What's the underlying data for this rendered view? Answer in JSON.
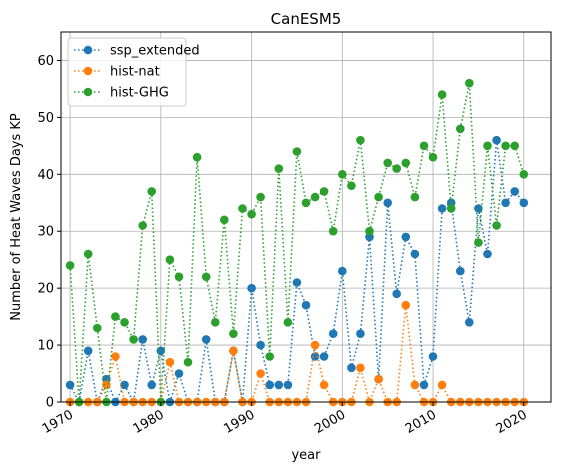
{
  "chart_data": {
    "type": "line",
    "title": "CanESM5",
    "xlabel": "year",
    "ylabel": "Number of Heat Waves Days KP",
    "xlim": [
      1969,
      2023
    ],
    "ylim": [
      0,
      65
    ],
    "xticks": [
      1970,
      1980,
      1990,
      2000,
      2010,
      2020
    ],
    "yticks": [
      0,
      10,
      20,
      30,
      40,
      50,
      60
    ],
    "grid": true,
    "legend_position": "top-left",
    "x": [
      1970,
      1971,
      1972,
      1973,
      1974,
      1975,
      1976,
      1977,
      1978,
      1979,
      1980,
      1981,
      1982,
      1983,
      1984,
      1985,
      1986,
      1987,
      1988,
      1989,
      1990,
      1991,
      1992,
      1993,
      1994,
      1995,
      1996,
      1997,
      1998,
      1999,
      2000,
      2001,
      2002,
      2003,
      2004,
      2005,
      2006,
      2007,
      2008,
      2009,
      2010,
      2011,
      2012,
      2013,
      2014,
      2015,
      2016,
      2017,
      2018,
      2019,
      2020,
      2021
    ],
    "series": [
      {
        "name": "ssp_extended",
        "color": "#1f77b4",
        "values": [
          3,
          0,
          9,
          0,
          4,
          0,
          3,
          0,
          11,
          3,
          9,
          0,
          5,
          0,
          0,
          11,
          0,
          0,
          9,
          0,
          20,
          10,
          3,
          3,
          3,
          21,
          17,
          8,
          8,
          12,
          23,
          6,
          12,
          29,
          4,
          35,
          19,
          29,
          26,
          3,
          8,
          34,
          35,
          23,
          14,
          34,
          26,
          46,
          35,
          37,
          35,
          null
        ]
      },
      {
        "name": "hist-nat",
        "color": "#ff7f0e",
        "values": [
          0,
          0,
          0,
          0,
          3,
          8,
          0,
          0,
          0,
          0,
          0,
          7,
          0,
          0,
          0,
          0,
          0,
          0,
          9,
          0,
          0,
          5,
          0,
          0,
          0,
          0,
          0,
          10,
          3,
          0,
          0,
          0,
          6,
          0,
          4,
          0,
          0,
          17,
          3,
          0,
          0,
          3,
          0,
          0,
          0,
          0,
          0,
          0,
          0,
          0,
          0,
          null
        ]
      },
      {
        "name": "hist-GHG",
        "color": "#2ca02c",
        "values": [
          24,
          0,
          26,
          13,
          0,
          15,
          14,
          11,
          31,
          37,
          0,
          25,
          22,
          7,
          43,
          22,
          14,
          32,
          12,
          34,
          33,
          36,
          8,
          41,
          14,
          44,
          35,
          36,
          37,
          30,
          40,
          38,
          46,
          30,
          36,
          42,
          41,
          42,
          36,
          45,
          43,
          54,
          34,
          48,
          56,
          28,
          45,
          31,
          45,
          45,
          40,
          null
        ]
      }
    ]
  }
}
